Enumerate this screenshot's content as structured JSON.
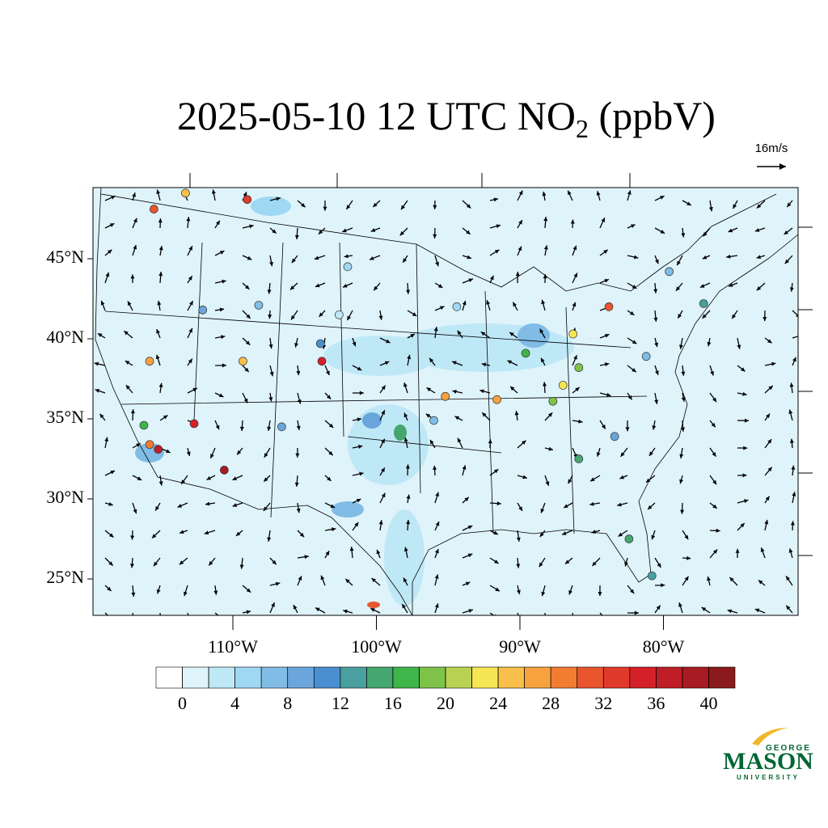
{
  "title": {
    "main": "2025-05-10 12 UTC NO",
    "sub": "2",
    "unit": " (ppbV)"
  },
  "map": {
    "reference_vector": "16m/s",
    "lat_ticks": [
      {
        "value": 45,
        "label": "45°N"
      },
      {
        "value": 40,
        "label": "40°N"
      },
      {
        "value": 35,
        "label": "35°N"
      },
      {
        "value": 30,
        "label": "30°N"
      },
      {
        "value": 25,
        "label": "25°N"
      }
    ],
    "lon_ticks": [
      {
        "value": -110,
        "label": "110°W"
      },
      {
        "value": -100,
        "label": "100°W"
      },
      {
        "value": -90,
        "label": "90°W"
      },
      {
        "value": -80,
        "label": "80°W"
      }
    ],
    "stations": [
      {
        "lon": -115.2,
        "lat": 33.1,
        "value": 36
      },
      {
        "lon": -115.8,
        "lat": 33.4,
        "value": 28
      },
      {
        "lon": -115.5,
        "lat": 48.1,
        "value": 30
      },
      {
        "lon": -113.3,
        "lat": 49.1,
        "value": 24
      },
      {
        "lon": -109.0,
        "lat": 48.7,
        "value": 32
      },
      {
        "lon": -103.8,
        "lat": 38.6,
        "value": 34
      },
      {
        "lon": -112.7,
        "lat": 34.7,
        "value": 34
      },
      {
        "lon": -110.6,
        "lat": 31.8,
        "value": 38
      },
      {
        "lon": -115.8,
        "lat": 38.6,
        "value": 26
      },
      {
        "lon": -109.3,
        "lat": 38.6,
        "value": 24
      },
      {
        "lon": -95.2,
        "lat": 36.4,
        "value": 26
      },
      {
        "lon": -91.6,
        "lat": 36.2,
        "value": 27
      },
      {
        "lon": -86.3,
        "lat": 40.3,
        "value": 23
      },
      {
        "lon": -83.8,
        "lat": 42.0,
        "value": 30
      },
      {
        "lon": -89.6,
        "lat": 39.1,
        "value": 17
      },
      {
        "lon": -87.0,
        "lat": 37.1,
        "value": 22
      },
      {
        "lon": -87.7,
        "lat": 36.1,
        "value": 18
      },
      {
        "lon": -85.9,
        "lat": 32.5,
        "value": 15
      },
      {
        "lon": -82.4,
        "lat": 27.5,
        "value": 15
      },
      {
        "lon": -80.8,
        "lat": 25.2,
        "value": 13
      },
      {
        "lon": -116.2,
        "lat": 34.6,
        "value": 17
      },
      {
        "lon": -77.2,
        "lat": 42.2,
        "value": 12
      },
      {
        "lon": -85.9,
        "lat": 38.2,
        "value": 18
      },
      {
        "lon": -108.2,
        "lat": 42.1,
        "value": 6
      },
      {
        "lon": -102.0,
        "lat": 44.5,
        "value": 5
      },
      {
        "lon": -94.4,
        "lat": 42.0,
        "value": 4
      },
      {
        "lon": -81.2,
        "lat": 38.9,
        "value": 6
      },
      {
        "lon": -83.4,
        "lat": 33.9,
        "value": 8
      },
      {
        "lon": -106.6,
        "lat": 34.5,
        "value": 9
      },
      {
        "lon": -96.0,
        "lat": 34.9,
        "value": 7
      },
      {
        "lon": -103.9,
        "lat": 39.7,
        "value": 10
      },
      {
        "lon": -79.6,
        "lat": 44.2,
        "value": 7
      },
      {
        "lon": -112.1,
        "lat": 41.8,
        "value": 8
      },
      {
        "lon": -102.6,
        "lat": 41.5,
        "value": 3
      }
    ]
  },
  "colorbar": {
    "levels": [
      0,
      2,
      4,
      6,
      8,
      10,
      12,
      14,
      16,
      18,
      20,
      22,
      24,
      26,
      28,
      30,
      32,
      34,
      36,
      38,
      40
    ],
    "labels": [
      0,
      4,
      8,
      12,
      16,
      20,
      24,
      28,
      32,
      36,
      40
    ],
    "colors": [
      "#ffffff",
      "#dff3fb",
      "#bfe8f7",
      "#9fd8f2",
      "#80bce6",
      "#6aa6dc",
      "#4a8fd0",
      "#4a9fa0",
      "#45a66f",
      "#3fb54a",
      "#7fc24a",
      "#b9d254",
      "#f7e654",
      "#f8c04a",
      "#f7a23e",
      "#f27c32",
      "#e8552e",
      "#df3a2b",
      "#d42129",
      "#c01e26",
      "#a81b22",
      "#8b1a1c"
    ]
  },
  "logo": {
    "top": "GEORGE",
    "name": "MASON",
    "bottom": "UNIVERSITY"
  }
}
